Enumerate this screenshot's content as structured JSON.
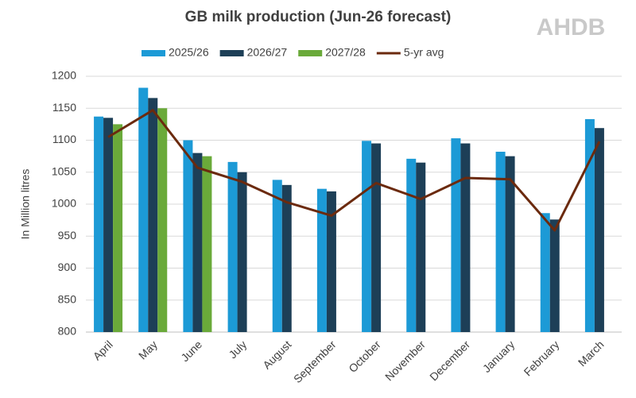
{
  "chart_data": {
    "type": "bar",
    "title": "GB milk production (Jun-26 forecast)",
    "logo": "AHDB",
    "y_label": "In Million litres",
    "categories": [
      "April",
      "May",
      "June",
      "July",
      "August",
      "September",
      "October",
      "November",
      "December",
      "January",
      "February",
      "March"
    ],
    "series": [
      {
        "name": "2025/26",
        "color": "#1c9ad6",
        "type": "bar",
        "values": [
          1137,
          1182,
          1100,
          1066,
          1038,
          1024,
          1099,
          1071,
          1103,
          1082,
          986,
          1133
        ]
      },
      {
        "name": "2026/27",
        "color": "#1d3f57",
        "type": "bar",
        "values": [
          1135,
          1166,
          1080,
          1050,
          1030,
          1020,
          1095,
          1065,
          1095,
          1075,
          976,
          1119
        ]
      },
      {
        "name": "2027/28",
        "color": "#6aaa3a",
        "type": "bar",
        "values": [
          1125,
          1150,
          1075,
          null,
          null,
          null,
          null,
          null,
          null,
          null,
          null,
          null
        ]
      },
      {
        "name": "5-yr avg",
        "color": "#6b2a0e",
        "type": "line",
        "values": [
          1105,
          1147,
          1057,
          1035,
          1003,
          982,
          1033,
          1008,
          1041,
          1039,
          959,
          1098
        ]
      }
    ],
    "ylim": [
      800,
      1200
    ],
    "yticks": [
      800,
      850,
      900,
      950,
      1000,
      1050,
      1100,
      1150,
      1200
    ],
    "grid": true
  }
}
